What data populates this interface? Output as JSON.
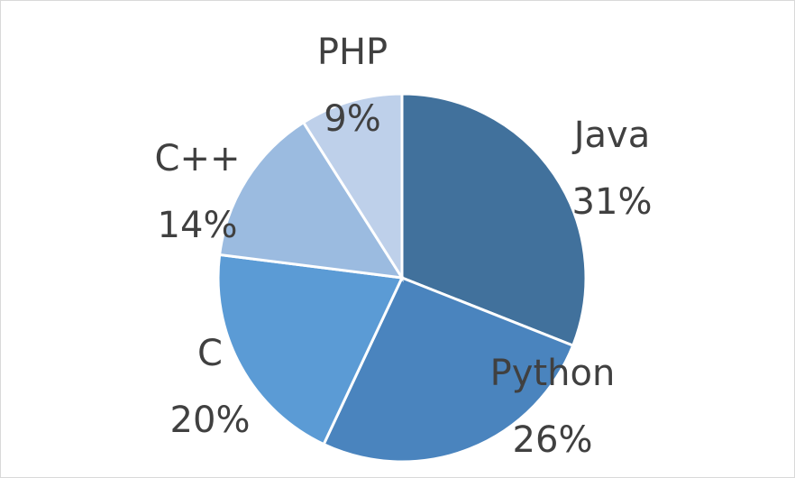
{
  "chart_data": {
    "type": "pie",
    "title": "",
    "start_angle_deg": 0,
    "direction": "clockwise",
    "legend": "none",
    "slices": [
      {
        "label": "Java",
        "value": 31,
        "value_label": "31%",
        "color": "#41719C"
      },
      {
        "label": "Python",
        "value": 26,
        "value_label": "26%",
        "color": "#4A84BE"
      },
      {
        "label": "C",
        "value": 20,
        "value_label": "20%",
        "color": "#5B9BD5"
      },
      {
        "label": "C++",
        "value": 14,
        "value_label": "14%",
        "color": "#9BBBE0"
      },
      {
        "label": "PHP",
        "value": 9,
        "value_label": "9%",
        "color": "#BED0EA"
      }
    ]
  }
}
